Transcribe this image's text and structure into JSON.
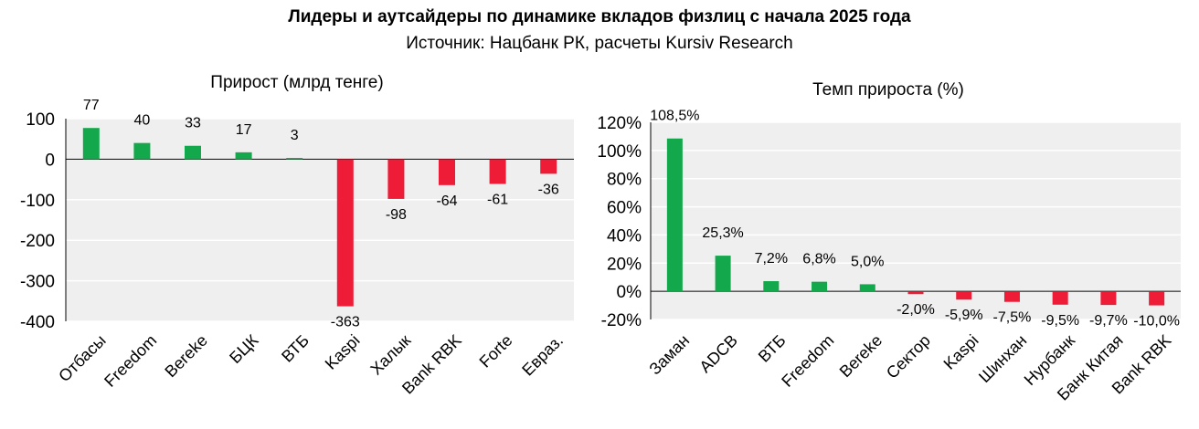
{
  "header": {
    "title": "Лидеры и аутсайдеры по динамике вкладов физлиц с начала 2025 года",
    "subtitle": "Источник: Нацбанк РК, расчеты Kursiv Research"
  },
  "colors": {
    "positive": "#13a84b",
    "negative": "#ee1c37",
    "plot_bg": "#efefef",
    "grid": "#ffffff"
  },
  "chart_data": [
    {
      "type": "bar",
      "title": "Прирост (млрд тенге)",
      "categories": [
        "Отбасы",
        "Freedom",
        "Bereke",
        "БЦК",
        "ВТБ",
        "Kaspi",
        "Халык",
        "Bank RBK",
        "Forte",
        "Евраз."
      ],
      "values": [
        77,
        40,
        33,
        17,
        3,
        -363,
        -98,
        -64,
        -61,
        -36
      ],
      "data_labels": [
        "77",
        "40",
        "33",
        "17",
        "3",
        "-363",
        "-98",
        "-64",
        "-61",
        "-36"
      ],
      "yticks": [
        "100",
        "0",
        "-100",
        "-200",
        "-300",
        "-400"
      ],
      "ylim": [
        -400,
        100
      ],
      "grid": true
    },
    {
      "type": "bar",
      "title": "Темп прироста (%)",
      "categories": [
        "Заман",
        "ADCB",
        "ВТБ",
        "Freedom",
        "Bereke",
        "Сектор",
        "Kaspi",
        "Шинхан",
        "Нурбанк",
        "Банк Китая",
        "Bank RBK"
      ],
      "values": [
        108.5,
        25.3,
        7.2,
        6.8,
        5.0,
        -2.0,
        -5.9,
        -7.5,
        -9.5,
        -9.7,
        -10.0
      ],
      "data_labels": [
        "108,5%",
        "25,3%",
        "7,2%",
        "6,8%",
        "5,0%",
        "-2,0%",
        "-5,9%",
        "-7,5%",
        "-9,5%",
        "-9,7%",
        "-10,0%"
      ],
      "yticks": [
        "120%",
        "100%",
        "80%",
        "60%",
        "40%",
        "20%",
        "0%",
        "-20%"
      ],
      "ylim": [
        -20,
        120
      ],
      "grid": true
    }
  ]
}
